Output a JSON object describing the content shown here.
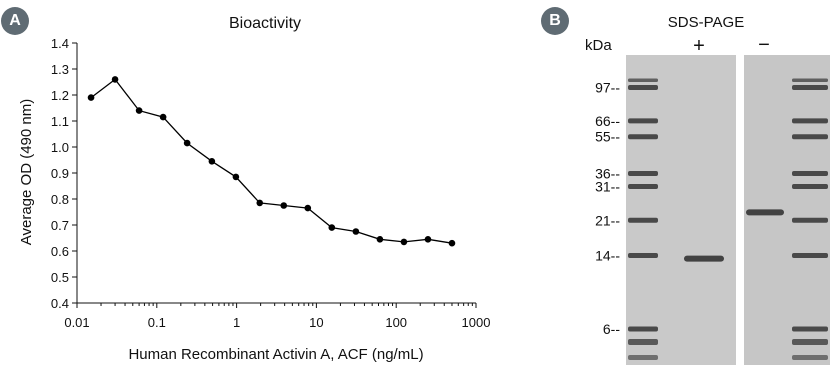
{
  "panels": {
    "a_label": "A",
    "b_label": "B"
  },
  "chart_data": {
    "type": "line",
    "title": "Bioactivity",
    "xlabel": "Human Recombinant Activin A, ACF (ng/mL)",
    "ylabel": "Average OD (490 nm)",
    "xscale": "log",
    "xlim": [
      0.01,
      1000
    ],
    "ylim": [
      0.4,
      1.4
    ],
    "xticks": [
      0.01,
      0.1,
      1,
      10,
      100,
      1000
    ],
    "xtick_labels": [
      "0.01",
      "0.1",
      "1",
      "10",
      "100",
      "1000"
    ],
    "yticks": [
      0.4,
      0.5,
      0.6,
      0.7,
      0.8,
      0.9,
      1.0,
      1.1,
      1.2,
      1.3,
      1.4
    ],
    "ytick_labels": [
      "0.4",
      "0.5",
      "0.6",
      "0.7",
      "0.8",
      "0.9",
      "1.0",
      "1.1",
      "1.2",
      "1.3",
      "1.4"
    ],
    "grid": false,
    "legend": "none",
    "series": [
      {
        "color": "#000000",
        "x": [
          0.015,
          0.03,
          0.06,
          0.12,
          0.24,
          0.49,
          0.98,
          1.95,
          3.9,
          7.8,
          15.6,
          31.25,
          62.5,
          125,
          250,
          500
        ],
        "y": [
          1.19,
          1.26,
          1.14,
          1.115,
          1.015,
          0.945,
          0.885,
          0.785,
          0.775,
          0.765,
          0.69,
          0.675,
          0.645,
          0.635,
          0.645,
          0.63
        ]
      }
    ]
  },
  "gel": {
    "title": "SDS-PAGE",
    "unit_label": "kDa",
    "lane_plus": "+",
    "lane_minus": "−",
    "markers": [
      "97--",
      "66--",
      "55--",
      "36--",
      "31--",
      "21--",
      "14--",
      "6--"
    ],
    "marker_kda": [
      97,
      66,
      55,
      36,
      31,
      21,
      14,
      6
    ],
    "sample_band_plus_kda": 13.5,
    "sample_band_minus_kda": 23,
    "colors": {
      "background": "#c9c9c9",
      "band": "#333333",
      "badge": "#5f6b73"
    }
  }
}
